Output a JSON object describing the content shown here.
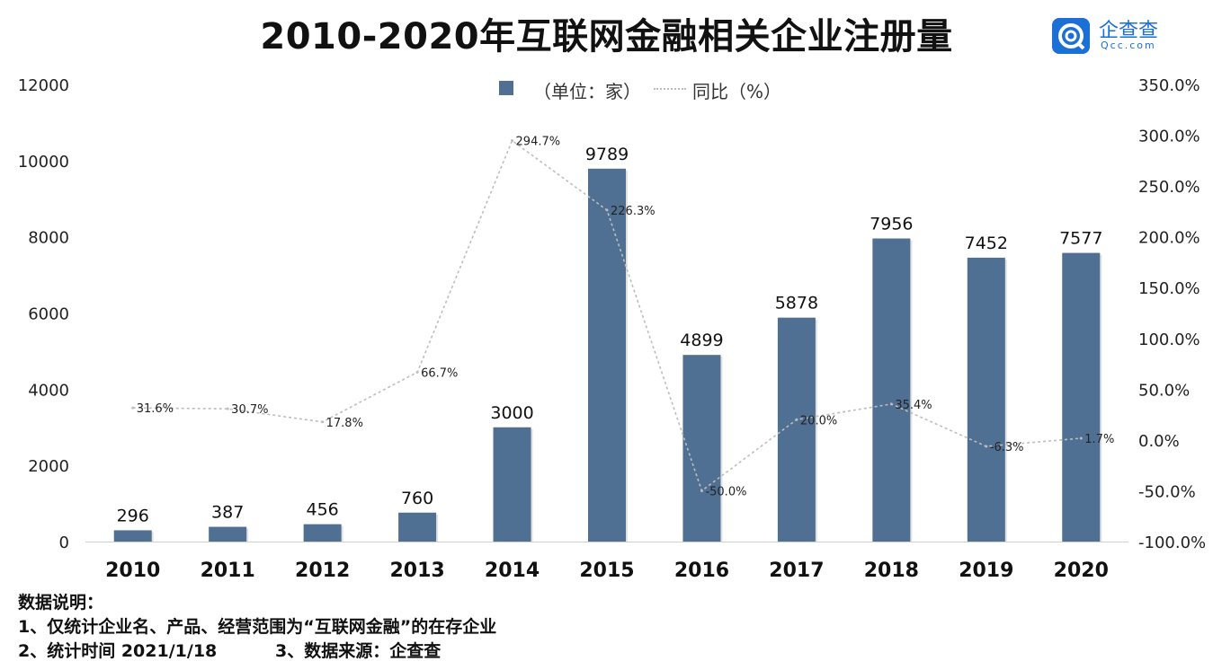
{
  "title": "2010-2020年互联网金融相关企业注册量",
  "logo": {
    "name": "企查查",
    "sub": "Qcc.com"
  },
  "legend": {
    "bar": "（单位：家）",
    "line": "同比（%）"
  },
  "colors": {
    "bar": "#4f6f93",
    "line": "#bdbdbd"
  },
  "chart_data": {
    "type": "bar",
    "categories": [
      "2010",
      "2011",
      "2012",
      "2013",
      "2014",
      "2015",
      "2016",
      "2017",
      "2018",
      "2019",
      "2020"
    ],
    "series": [
      {
        "name": "（单位：家）",
        "type": "bar",
        "axis": "left",
        "values": [
          296,
          387,
          456,
          760,
          3000,
          9789,
          4899,
          5878,
          7956,
          7452,
          7577
        ]
      },
      {
        "name": "同比（%）",
        "type": "line",
        "axis": "right",
        "values": [
          31.6,
          30.7,
          17.8,
          66.7,
          294.7,
          226.3,
          -50.0,
          20.0,
          35.4,
          -6.3,
          1.7
        ]
      }
    ],
    "y_left": {
      "min": 0,
      "max": 12000,
      "ticks": [
        "0",
        "2000",
        "4000",
        "6000",
        "8000",
        "10000",
        "12000"
      ]
    },
    "y_right": {
      "min": -100,
      "max": 350,
      "ticks": [
        "-100.0%",
        "-50.0%",
        "0.0%",
        "50.0%",
        "100.0%",
        "150.0%",
        "200.0%",
        "250.0%",
        "300.0%",
        "350.0%"
      ]
    },
    "bar_labels": [
      "296",
      "387",
      "456",
      "760",
      "3000",
      "9789",
      "4899",
      "5878",
      "7956",
      "7452",
      "7577"
    ],
    "line_labels": [
      "31.6%",
      "30.7%",
      "17.8%",
      "66.7%",
      "294.7%",
      "226.3%",
      "-50.0%",
      "20.0%",
      "35.4%",
      "-6.3%",
      "1.7%"
    ],
    "legend_position": "top-center",
    "grid": false
  },
  "notes": {
    "heading": "数据说明：",
    "line1": "1、仅统计企业名、产品、经营范围为“互联网金融”的在存企业",
    "line2": "2、统计时间 2021/1/18",
    "line3": "3、数据来源：企查查"
  }
}
